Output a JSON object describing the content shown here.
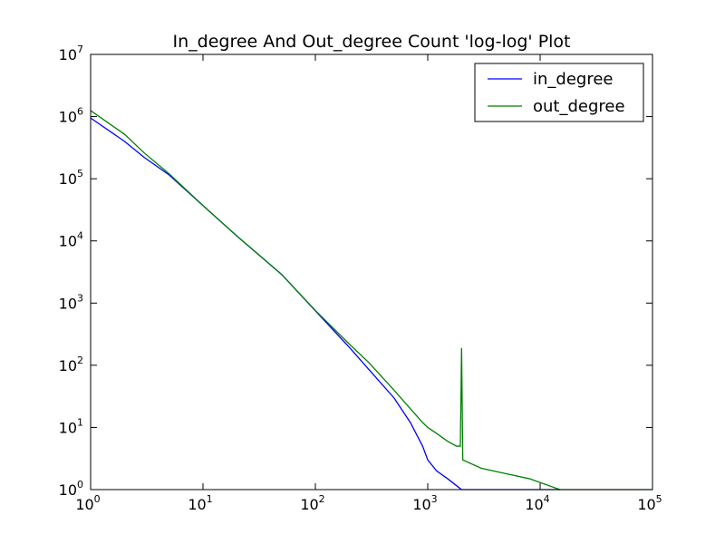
{
  "chart_data": {
    "type": "line",
    "title": "In_degree And Out_degree Count 'log-log' Plot",
    "xlabel": "",
    "ylabel": "",
    "xscale": "log",
    "yscale": "log",
    "xlim": [
      1,
      100000
    ],
    "ylim": [
      1,
      10000000
    ],
    "grid": false,
    "legend_position": "top-right",
    "x_ticks": [
      {
        "value": 1,
        "base": "10",
        "exp": "0"
      },
      {
        "value": 10,
        "base": "10",
        "exp": "1"
      },
      {
        "value": 100,
        "base": "10",
        "exp": "2"
      },
      {
        "value": 1000,
        "base": "10",
        "exp": "3"
      },
      {
        "value": 10000,
        "base": "10",
        "exp": "4"
      },
      {
        "value": 100000,
        "base": "10",
        "exp": "5"
      }
    ],
    "y_ticks": [
      {
        "value": 1,
        "base": "10",
        "exp": "0"
      },
      {
        "value": 10,
        "base": "10",
        "exp": "1"
      },
      {
        "value": 100,
        "base": "10",
        "exp": "2"
      },
      {
        "value": 1000,
        "base": "10",
        "exp": "3"
      },
      {
        "value": 10000,
        "base": "10",
        "exp": "4"
      },
      {
        "value": 100000,
        "base": "10",
        "exp": "5"
      },
      {
        "value": 1000000,
        "base": "10",
        "exp": "6"
      },
      {
        "value": 10000000,
        "base": "10",
        "exp": "7"
      }
    ],
    "series": [
      {
        "name": "in_degree",
        "color": "#0000ff",
        "x": [
          1,
          2,
          3,
          5,
          10,
          20,
          50,
          100,
          200,
          300,
          500,
          700,
          900,
          1000,
          1200,
          1500,
          2000,
          3000,
          5000,
          8000,
          10000,
          15000
        ],
        "y": [
          950000,
          400000,
          220000,
          115000,
          37000,
          12000,
          2900,
          750,
          195,
          85,
          30,
          12,
          5,
          3,
          2,
          1.5,
          1,
          1,
          1,
          1,
          1,
          1
        ]
      },
      {
        "name": "out_degree",
        "color": "#008000",
        "x": [
          1,
          2,
          3,
          5,
          10,
          20,
          50,
          100,
          200,
          300,
          500,
          700,
          900,
          1000,
          1200,
          1500,
          1800,
          1950,
          2000,
          2050,
          3000,
          5000,
          8000,
          15000,
          100000
        ],
        "y": [
          1250000,
          520000,
          260000,
          120000,
          37000,
          12000,
          2900,
          760,
          220,
          110,
          40,
          20,
          12,
          10,
          8,
          6,
          5,
          5,
          190,
          3,
          2.2,
          1.8,
          1.5,
          1,
          1
        ]
      }
    ]
  }
}
